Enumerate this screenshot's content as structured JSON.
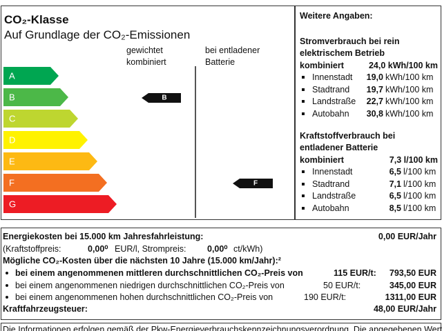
{
  "header": {
    "title": "CO₂-Klasse",
    "subtitle": "Auf Grundlage der CO₂-Emissionen",
    "col1": [
      "gewichtet",
      "kombiniert"
    ],
    "col2": [
      "bei entladener",
      "Batterie"
    ]
  },
  "classes": [
    "A",
    "B",
    "C",
    "D",
    "E",
    "F",
    "G"
  ],
  "markers": {
    "weighted": "B",
    "discharged": "F"
  },
  "details": {
    "title": "Weitere Angaben:",
    "electric": {
      "title": [
        "Stromverbrauch bei rein",
        "elektrischem Betrieb"
      ],
      "combined_label": "kombiniert",
      "combined_value": "24,0 kWh/100 km",
      "rows": [
        {
          "label": "Innenstadt",
          "value": "19,0",
          "unit": "kWh/100 km"
        },
        {
          "label": "Stadtrand",
          "value": "19,7",
          "unit": "kWh/100 km"
        },
        {
          "label": "Landstraße",
          "value": "22,7",
          "unit": "kWh/100 km"
        },
        {
          "label": "Autobahn",
          "value": "30,8",
          "unit": "kWh/100 km"
        }
      ]
    },
    "fuel": {
      "title": [
        "Kraftstoffverbrauch bei",
        "entladener Batterie"
      ],
      "combined_label": "kombiniert",
      "combined_value": "7,3 l/100 km",
      "rows": [
        {
          "label": "Innenstadt",
          "value": "6,5",
          "unit": "l/100 km"
        },
        {
          "label": "Stadtrand",
          "value": "7,1",
          "unit": "l/100 km"
        },
        {
          "label": "Landstraße",
          "value": "6,5",
          "unit": "l/100 km"
        },
        {
          "label": "Autobahn",
          "value": "8,5",
          "unit": "l/100 km"
        }
      ]
    }
  },
  "costs": {
    "energy_label": "Energiekosten bei 15.000 km Jahresfahrleistung:",
    "energy_value": "0,00 EUR/Jahr",
    "prices": [
      "(Kraftstoffpreis:",
      "0,00⁰",
      "EUR/l, Strompreis:",
      "0,00⁰",
      "ct/kWh)"
    ],
    "co2_title": "Mögliche CO₂-Kosten über die nächsten 10 Jahre (15.000 km/Jahr):²",
    "co2_rows": [
      {
        "label": "bei einem angenommenen mittleren durchschnittlichen CO₂-Preis von",
        "price": "115 EUR/t:",
        "amount": "793,50 EUR"
      },
      {
        "label": "bei einem angenommenen niedrigen durchschnittlichen CO₂-Preis von",
        "price": "50 EUR/t:",
        "amount": "345,00 EUR"
      },
      {
        "label": "bei einem angenommenen hohen durchschnittlichen CO₂-Preis von",
        "price": "190 EUR/t:",
        "amount": "1311,00 EUR"
      }
    ],
    "tax_label": "Kraftfahrzeugsteuer:",
    "tax_value": "48,00 EUR/Jahr"
  },
  "footer": "Die Informationen erfolgen gemäß der Pkw-Energieverbrauchskennzeichnungsverordnung. Die angegebenen Werte wurden ermittelt"
}
